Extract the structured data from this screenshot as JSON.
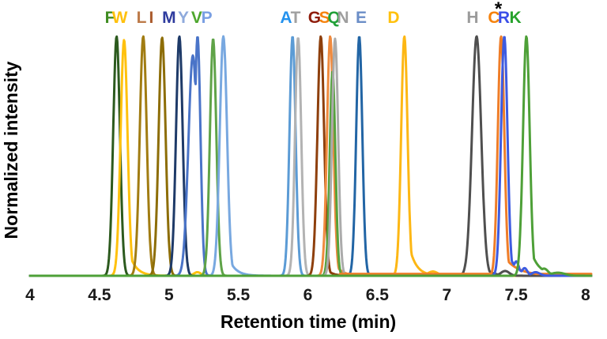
{
  "figure": {
    "xlabel": "Retention time (min)",
    "ylabel": "Normalized intensity"
  },
  "chart_data": {
    "type": "line",
    "title": "",
    "xlabel": "Retention time (min)",
    "ylabel": "Normalized intensity",
    "xlim": [
      4,
      8
    ],
    "ylim": [
      0,
      1.05
    ],
    "grid": false,
    "x_ticks": [
      "4",
      "4.5",
      "5",
      "5.5",
      "6",
      "6.5",
      "7",
      "7.5",
      "8"
    ],
    "annotation": {
      "text": "*",
      "x": 7.371,
      "note_above_series": "C"
    },
    "series": [
      {
        "name": "F",
        "retention_time_min": 4.62,
        "color": "#2c5a1e",
        "label_color": "#3f8c21",
        "label_x": 4.575,
        "peaks": [
          [
            4.623,
            1.0,
            0.024
          ]
        ]
      },
      {
        "name": "W",
        "retention_time_min": 4.68,
        "color": "#ffc10e",
        "label_color": "#ffc10e",
        "label_x": 4.646,
        "peaks": [
          [
            4.677,
            0.985,
            0.025
          ]
        ],
        "tail": [
          0.2,
          0.05
        ],
        "bumps": [
          [
            5.205,
            0.015,
            0.025
          ]
        ]
      },
      {
        "name": "L",
        "retention_time_min": 4.82,
        "color": "#a17c12",
        "label_color": "#bd7b4a",
        "label_x": 4.802,
        "peaks": [
          [
            4.815,
            1.0,
            0.025
          ]
        ]
      },
      {
        "name": "I",
        "retention_time_min": 4.95,
        "color": "#8d6d06",
        "label_color": "#aa5b2d",
        "label_x": 4.873,
        "peaks": [
          [
            4.951,
            0.995,
            0.025
          ]
        ]
      },
      {
        "name": "M",
        "retention_time_min": 5.08,
        "color": "#1e3a68",
        "label_color": "#2e3b9e",
        "label_x": 5.001,
        "peaks": [
          [
            5.075,
            1.0,
            0.024
          ]
        ]
      },
      {
        "name": "Y",
        "retention_time_min": 5.21,
        "color": "#4a74c8",
        "label_color": "#8faadc",
        "label_x": 5.104,
        "peaks": [
          [
            5.206,
            1.0,
            0.021
          ],
          [
            5.172,
            0.92,
            0.032
          ]
        ]
      },
      {
        "name": "V",
        "retention_time_min": 5.32,
        "color": "#5fa348",
        "label_color": "#4ea72e",
        "label_x": 5.2,
        "peaks": [
          [
            5.318,
            0.99,
            0.023
          ]
        ]
      },
      {
        "name": "P",
        "retention_time_min": 5.39,
        "color": "#78a8e0",
        "label_color": "#7a9fe3",
        "label_x": 5.272,
        "peaks": [
          [
            5.392,
            1.0,
            0.026
          ]
        ],
        "tail": [
          0.16,
          0.05
        ]
      },
      {
        "name": "A",
        "retention_time_min": 5.89,
        "color": "#5b9bd5",
        "label_color": "#2492ee",
        "label_x": 5.843,
        "peaks": [
          [
            5.89,
            1.0,
            0.022
          ]
        ]
      },
      {
        "name": "T",
        "retention_time_min": 5.93,
        "color": "#b3b3b3",
        "label_color": "#a0a0a0",
        "label_x": 5.912,
        "peaks": [
          [
            5.93,
            0.995,
            0.022
          ]
        ]
      },
      {
        "name": "G",
        "retention_time_min": 6.09,
        "color": "#8e3f0c",
        "label_color": "#8f1d0c",
        "label_x": 6.048,
        "peaks": [
          [
            6.093,
            1.0,
            0.024
          ]
        ],
        "tail": [
          0.08,
          0.04
        ]
      },
      {
        "name": "S",
        "retention_time_min": 6.16,
        "color": "#ef8a3e",
        "label_color": "#f5820c",
        "label_x": 6.12,
        "peaks": [
          [
            6.161,
            1.0,
            0.023
          ]
        ],
        "tail": [
          0.1,
          0.05
        ]
      },
      {
        "name": "Q",
        "retention_time_min": 6.18,
        "color": "#55a23c",
        "label_color": "#21a038",
        "label_x": 6.188,
        "peaks": [
          [
            6.178,
            0.855,
            0.02
          ]
        ]
      },
      {
        "name": "N",
        "retention_time_min": 6.2,
        "color": "#ababab",
        "label_color": "#9e9e9e",
        "label_x": 6.253,
        "peaks": [
          [
            6.196,
            0.99,
            0.022
          ]
        ]
      },
      {
        "name": "E",
        "retention_time_min": 6.37,
        "color": "#2265a5",
        "label_color": "#6b8ec7",
        "label_x": 6.384,
        "peaks": [
          [
            6.37,
            1.0,
            0.022
          ]
        ]
      },
      {
        "name": "D",
        "retention_time_min": 6.7,
        "color": "#fdb714",
        "label_color": "#ffc10e",
        "label_x": 6.617,
        "peaks": [
          [
            6.695,
            1.0,
            0.023
          ]
        ],
        "tail": [
          0.25,
          0.05
        ],
        "bumps": [
          [
            6.9,
            0.018,
            0.035
          ]
        ]
      },
      {
        "name": "H",
        "retention_time_min": 7.21,
        "color": "#4f4f4f",
        "label_color": "#9b9b9b",
        "label_x": 7.186,
        "peaks": [
          [
            7.215,
            1.0,
            0.033
          ]
        ],
        "tail": [
          0.12,
          0.05
        ],
        "bumps": [
          [
            7.42,
            0.02,
            0.03
          ]
        ]
      },
      {
        "name": "C",
        "retention_time_min": 7.39,
        "color": "#ef7d28",
        "label_color": "#f5820c",
        "label_x": 7.34,
        "peaks": [
          [
            7.391,
            1.0,
            0.023
          ]
        ],
        "tail": [
          0.1,
          0.1
        ],
        "base": [
          6.23,
          8.05,
          0.008
        ]
      },
      {
        "name": "R",
        "retention_time_min": 7.41,
        "color": "#3d5be0",
        "label_color": "#3b4fe8",
        "label_x": 7.411,
        "peaks": [
          [
            7.414,
            1.0,
            0.023
          ]
        ],
        "tail": [
          0.15,
          0.06
        ],
        "bumps": [
          [
            7.5,
            0.06,
            0.02
          ],
          [
            7.56,
            0.032,
            0.02
          ],
          [
            7.64,
            0.015,
            0.03
          ]
        ]
      },
      {
        "name": "K",
        "retention_time_min": 7.57,
        "color": "#4ea038",
        "label_color": "#27a32c",
        "label_x": 7.494,
        "peaks": [
          [
            7.573,
            1.0,
            0.024
          ]
        ],
        "tail": [
          0.18,
          0.06
        ],
        "bumps": [
          [
            7.7,
            0.03,
            0.03
          ],
          [
            7.8,
            0.013,
            0.05
          ]
        ]
      }
    ]
  }
}
